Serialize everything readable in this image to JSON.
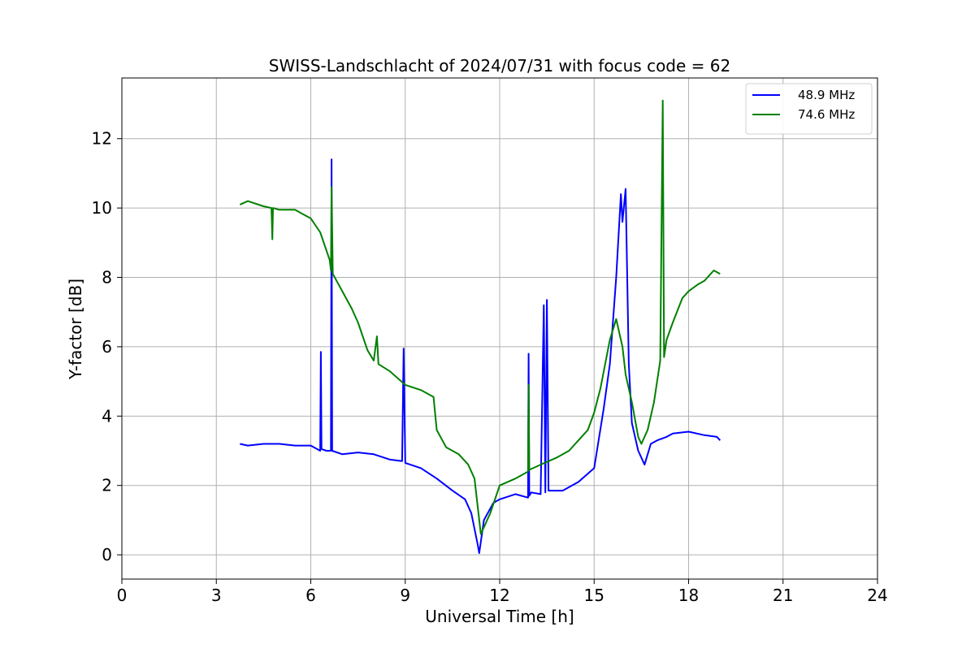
{
  "chart_data": {
    "type": "line",
    "title": "SWISS-Landschlacht of 2024/07/31 with focus code = 62",
    "xlabel": "Universal Time [h]",
    "ylabel": "Y-factor [dB]",
    "xlim": [
      0,
      24
    ],
    "ylim": [
      -0.7,
      13.75
    ],
    "xticks": [
      0,
      3,
      6,
      9,
      12,
      15,
      18,
      21,
      24
    ],
    "yticks": [
      0,
      2,
      4,
      6,
      8,
      10,
      12
    ],
    "grid": true,
    "legend_position": "top-right",
    "series": [
      {
        "name": "48.9 MHz",
        "color": "#0000ff",
        "x": [
          3.75,
          4.0,
          4.5,
          5.0,
          5.5,
          6.0,
          6.3,
          6.32,
          6.34,
          6.5,
          6.64,
          6.66,
          6.68,
          7.0,
          7.5,
          8.0,
          8.5,
          8.9,
          8.95,
          9.0,
          9.5,
          10.0,
          10.5,
          10.9,
          11.1,
          11.3,
          11.35,
          11.5,
          11.8,
          12.0,
          12.5,
          12.9,
          12.92,
          12.94,
          13.0,
          13.3,
          13.4,
          13.45,
          13.5,
          13.55,
          14.0,
          14.5,
          15.0,
          15.3,
          15.5,
          15.7,
          15.85,
          15.9,
          16.0,
          16.1,
          16.2,
          16.4,
          16.6,
          16.8,
          17.0,
          17.3,
          17.5,
          18.0,
          18.5,
          18.9,
          19.0
        ],
        "y": [
          3.2,
          3.15,
          3.2,
          3.2,
          3.15,
          3.15,
          3.0,
          5.85,
          3.05,
          3.0,
          3.0,
          11.4,
          3.0,
          2.9,
          2.95,
          2.9,
          2.75,
          2.7,
          5.95,
          2.65,
          2.5,
          2.2,
          1.85,
          1.6,
          1.2,
          0.3,
          0.05,
          1.0,
          1.5,
          1.6,
          1.75,
          1.65,
          5.8,
          1.7,
          1.8,
          1.75,
          7.2,
          1.8,
          7.35,
          1.85,
          1.85,
          2.1,
          2.5,
          4.2,
          5.5,
          8.0,
          10.4,
          9.6,
          10.55,
          5.5,
          3.8,
          3.0,
          2.6,
          3.2,
          3.3,
          3.4,
          3.5,
          3.55,
          3.45,
          3.4,
          3.3
        ]
      },
      {
        "name": "74.6 MHz",
        "color": "#008000",
        "x": [
          3.75,
          4.0,
          4.5,
          4.75,
          4.78,
          4.8,
          5.0,
          5.5,
          5.8,
          6.0,
          6.3,
          6.6,
          6.64,
          6.66,
          6.7,
          7.0,
          7.3,
          7.5,
          7.8,
          8.0,
          8.1,
          8.15,
          8.5,
          9.0,
          9.5,
          9.9,
          10.0,
          10.3,
          10.7,
          11.0,
          11.2,
          11.4,
          11.7,
          12.0,
          12.5,
          12.9,
          12.92,
          12.94,
          13.3,
          13.8,
          14.2,
          14.5,
          14.8,
          15.0,
          15.2,
          15.5,
          15.7,
          15.9,
          16.0,
          16.2,
          16.4,
          16.5,
          16.7,
          16.9,
          17.1,
          17.18,
          17.22,
          17.3,
          17.5,
          17.8,
          18.0,
          18.3,
          18.5,
          18.8,
          19.0
        ],
        "y": [
          10.1,
          10.2,
          10.05,
          10.0,
          9.1,
          10.0,
          9.95,
          9.95,
          9.8,
          9.7,
          9.3,
          8.5,
          8.2,
          10.6,
          8.1,
          7.6,
          7.1,
          6.7,
          5.9,
          5.6,
          6.3,
          5.5,
          5.3,
          4.9,
          4.75,
          4.55,
          3.6,
          3.1,
          2.9,
          2.6,
          2.2,
          0.6,
          1.2,
          2.0,
          2.2,
          2.4,
          4.9,
          2.45,
          2.6,
          2.8,
          3.0,
          3.3,
          3.6,
          4.1,
          4.8,
          6.2,
          6.8,
          6.0,
          5.2,
          4.4,
          3.4,
          3.2,
          3.6,
          4.4,
          5.6,
          13.1,
          5.7,
          6.2,
          6.7,
          7.4,
          7.6,
          7.8,
          7.9,
          8.2,
          8.1
        ]
      }
    ]
  }
}
